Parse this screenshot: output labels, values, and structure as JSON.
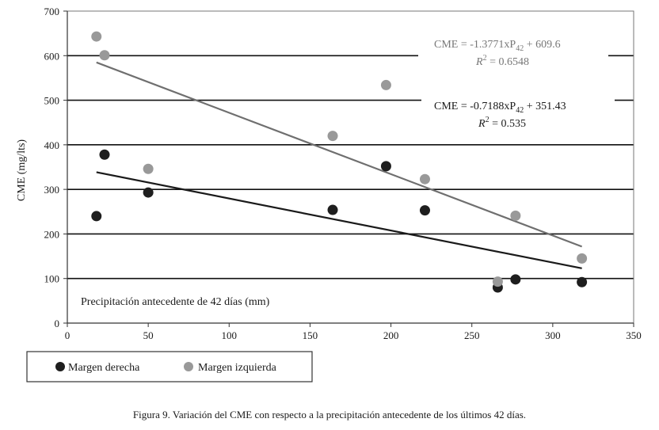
{
  "chart_data": {
    "type": "scatter",
    "title": "",
    "xlabel": "Precipitación antecedente de 42 días (mm)",
    "ylabel": "CME (mg/lts)",
    "xlim": [
      0,
      350
    ],
    "ylim": [
      0,
      700
    ],
    "xticks": [
      0,
      50,
      100,
      150,
      200,
      250,
      300,
      350
    ],
    "yticks": [
      0,
      100,
      200,
      300,
      400,
      500,
      600,
      700
    ],
    "grid": "horizontal",
    "series": [
      {
        "name": "Margen derecha",
        "color": "#1e1e1e",
        "points": [
          [
            18,
            240
          ],
          [
            23,
            378
          ],
          [
            50,
            293
          ],
          [
            164,
            254
          ],
          [
            197,
            352
          ],
          [
            221,
            253
          ],
          [
            266,
            80
          ],
          [
            277,
            98
          ],
          [
            318,
            92
          ]
        ],
        "trendline": {
          "x_start": 18,
          "x_end": 318,
          "slope": -0.7188,
          "intercept": 351.43
        },
        "equation": {
          "prefix": "CME = -0.7188xP",
          "sub": "42",
          "suffix": " + 351.43",
          "r2_label": "R",
          "r2_sup": "2",
          "r2_value": " = 0.535"
        }
      },
      {
        "name": "Margen izquierda",
        "color": "#999999",
        "points": [
          [
            18,
            643
          ],
          [
            23,
            601
          ],
          [
            50,
            346
          ],
          [
            164,
            420
          ],
          [
            197,
            534
          ],
          [
            221,
            323
          ],
          [
            266,
            93
          ],
          [
            277,
            241
          ],
          [
            318,
            145
          ]
        ],
        "trendline": {
          "x_start": 18,
          "x_end": 318,
          "slope": -1.3771,
          "intercept": 609.6
        },
        "equation": {
          "prefix": "CME = -1.3771xP",
          "sub": "42",
          "suffix": " + 609.6",
          "r2_label": "R",
          "r2_sup": "2",
          "r2_value": " = 0.6548"
        }
      }
    ],
    "legend_position": "bottom-left"
  },
  "caption": "Figura 9. Variación del CME con respecto a la precipitación antecedente de los últimos 42 días."
}
